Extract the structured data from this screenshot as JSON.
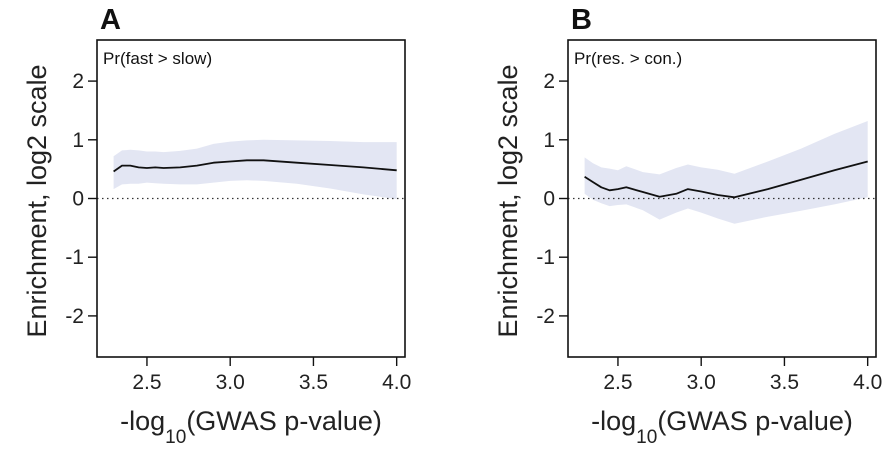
{
  "colors": {
    "band": "#e3e6f3",
    "line": "#111111",
    "frame": "#111111",
    "zero_line": "#333333"
  },
  "chart_data": [
    {
      "type": "line",
      "panel": "A",
      "annotation": "Pr(fast > slow)",
      "xlabel": "-log10(GWAS p-value)",
      "xlabel_main": "-log",
      "xlabel_sub": "10",
      "xlabel_rest": "(GWAS p-value)",
      "ylabel": "Enrichment, log2 scale",
      "xlim": [
        2.2,
        4.05
      ],
      "ylim": [
        -2.7,
        2.7
      ],
      "xticks": [
        2.5,
        3.0,
        3.5,
        4.0
      ],
      "xtick_labels": [
        "2.5",
        "3.0",
        "3.5",
        "4.0"
      ],
      "yticks": [
        2,
        1,
        0,
        -1,
        -2
      ],
      "ytick_labels": [
        "2",
        "1",
        "0",
        "-1",
        "-2"
      ],
      "reference_line": 0,
      "series": [
        {
          "x": [
            2.3,
            2.35,
            2.4,
            2.45,
            2.5,
            2.55,
            2.6,
            2.7,
            2.8,
            2.9,
            3.0,
            3.1,
            3.2,
            3.4,
            3.6,
            3.8,
            4.0
          ],
          "y": [
            0.46,
            0.56,
            0.56,
            0.53,
            0.52,
            0.53,
            0.52,
            0.53,
            0.56,
            0.61,
            0.63,
            0.65,
            0.65,
            0.61,
            0.57,
            0.53,
            0.48
          ],
          "lower": [
            0.16,
            0.24,
            0.25,
            0.25,
            0.27,
            0.26,
            0.25,
            0.24,
            0.24,
            0.27,
            0.3,
            0.31,
            0.3,
            0.25,
            0.17,
            0.07,
            -0.01
          ],
          "upper": [
            0.72,
            0.82,
            0.83,
            0.82,
            0.8,
            0.8,
            0.79,
            0.81,
            0.85,
            0.93,
            0.97,
            0.99,
            1.0,
            0.99,
            0.98,
            0.96,
            0.96
          ]
        }
      ]
    },
    {
      "type": "line",
      "panel": "B",
      "annotation": "Pr(res. > con.)",
      "xlabel": "-log10(GWAS p-value)",
      "xlabel_main": "-log",
      "xlabel_sub": "10",
      "xlabel_rest": "(GWAS p-value)",
      "ylabel": "Enrichment, log2 scale",
      "xlim": [
        2.2,
        4.05
      ],
      "ylim": [
        -2.7,
        2.7
      ],
      "xticks": [
        2.5,
        3.0,
        3.5,
        4.0
      ],
      "xtick_labels": [
        "2.5",
        "3.0",
        "3.5",
        "4.0"
      ],
      "yticks": [
        2,
        1,
        0,
        -1,
        -2
      ],
      "ytick_labels": [
        "2",
        "1",
        "0",
        "-1",
        "-2"
      ],
      "reference_line": 0,
      "series": [
        {
          "x": [
            2.3,
            2.35,
            2.4,
            2.45,
            2.5,
            2.55,
            2.65,
            2.75,
            2.85,
            2.92,
            3.0,
            3.1,
            3.2,
            3.4,
            3.6,
            3.8,
            4.0
          ],
          "y": [
            0.37,
            0.28,
            0.19,
            0.14,
            0.16,
            0.19,
            0.11,
            0.03,
            0.08,
            0.16,
            0.12,
            0.06,
            0.02,
            0.16,
            0.32,
            0.48,
            0.63
          ],
          "lower": [
            0.08,
            -0.02,
            -0.08,
            -0.13,
            -0.11,
            -0.1,
            -0.2,
            -0.36,
            -0.24,
            -0.17,
            -0.24,
            -0.34,
            -0.43,
            -0.31,
            -0.21,
            -0.1,
            0.02
          ],
          "upper": [
            0.7,
            0.6,
            0.53,
            0.51,
            0.48,
            0.55,
            0.45,
            0.41,
            0.52,
            0.58,
            0.53,
            0.49,
            0.42,
            0.63,
            0.85,
            1.1,
            1.32
          ]
        }
      ]
    }
  ]
}
